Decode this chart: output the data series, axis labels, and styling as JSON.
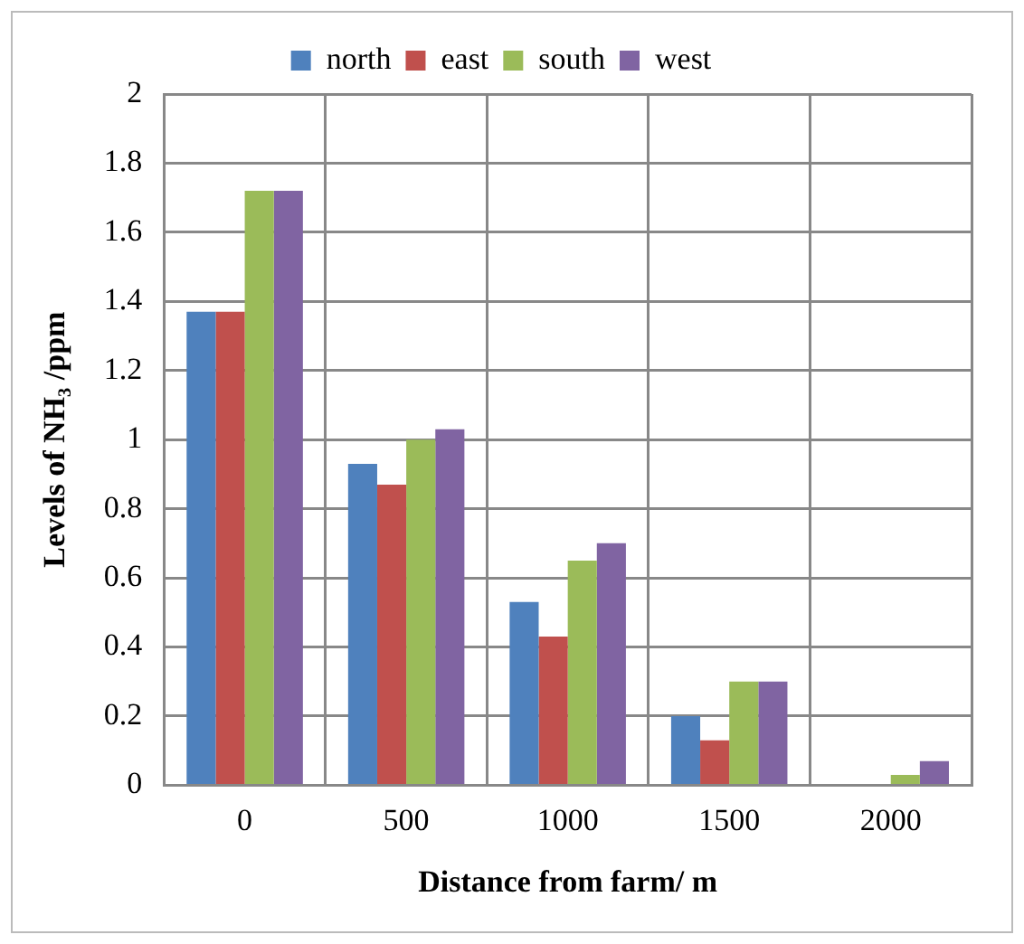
{
  "chart_data": {
    "type": "bar",
    "xlabel": "Distance from farm/ m",
    "ylabel": "Levels of NH₃ /ppm",
    "categories": [
      "0",
      "500",
      "1000",
      "1500",
      "2000"
    ],
    "series": [
      {
        "name": "north",
        "color": "#4f81bd",
        "values": [
          1.37,
          0.93,
          0.53,
          0.2,
          0
        ]
      },
      {
        "name": "east",
        "color": "#c0504d",
        "values": [
          1.37,
          0.87,
          0.43,
          0.13,
          0
        ]
      },
      {
        "name": "south",
        "color": "#9bbb59",
        "values": [
          1.72,
          1.0,
          0.65,
          0.3,
          0.03
        ]
      },
      {
        "name": "west",
        "color": "#8064a2",
        "values": [
          1.72,
          1.03,
          0.7,
          0.3,
          0.07
        ]
      }
    ],
    "ylim": [
      0,
      2
    ],
    "yticks": [
      0,
      0.2,
      0.4,
      0.6,
      0.8,
      1,
      1.2,
      1.4,
      1.6,
      1.8,
      2
    ],
    "grid": true,
    "legend": "top"
  }
}
